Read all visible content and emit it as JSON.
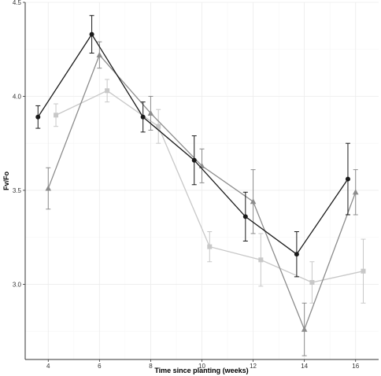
{
  "chart_data": {
    "type": "line",
    "title": "",
    "xlabel": "Time since planting (weeks)",
    "ylabel": "Fv/Fo",
    "xlim": [
      3.1,
      16.9
    ],
    "ylim": [
      2.6,
      4.5
    ],
    "x_ticks": [
      4,
      6,
      8,
      10,
      12,
      14,
      16
    ],
    "y_ticks": [
      3.0,
      3.5,
      4.0,
      4.5
    ],
    "x_tick_labels": [
      "4",
      "6",
      "8",
      "10",
      "12",
      "14",
      "16"
    ],
    "y_tick_labels": [
      "3.0",
      "3.5",
      "4.0",
      "4.5"
    ],
    "grid": true,
    "legend": "none",
    "series": [
      {
        "marker": "circle",
        "color": "#1a1a1a",
        "x": [
          3.6,
          5.7,
          7.7,
          9.7,
          11.7,
          13.7,
          15.7
        ],
        "y": [
          3.89,
          4.33,
          3.89,
          3.66,
          3.36,
          3.16,
          3.56
        ],
        "err": [
          0.06,
          0.1,
          0.08,
          0.13,
          0.13,
          0.12,
          0.19
        ]
      },
      {
        "marker": "triangle",
        "color": "#8c8c8c",
        "x": [
          4.0,
          6.0,
          8.0,
          10.0,
          12.0,
          14.0,
          16.0
        ],
        "y": [
          3.51,
          4.22,
          3.91,
          3.63,
          3.44,
          2.76,
          3.49
        ],
        "err": [
          0.11,
          0.07,
          0.09,
          0.09,
          0.17,
          0.14,
          0.12
        ]
      },
      {
        "marker": "square",
        "color": "#c8c8c8",
        "x": [
          4.3,
          6.3,
          8.3,
          10.3,
          12.3,
          14.3,
          16.3
        ],
        "y": [
          3.9,
          4.03,
          3.84,
          3.2,
          3.13,
          3.01,
          3.07
        ],
        "err": [
          0.06,
          0.06,
          0.09,
          0.08,
          0.14,
          0.11,
          0.17
        ]
      }
    ]
  }
}
